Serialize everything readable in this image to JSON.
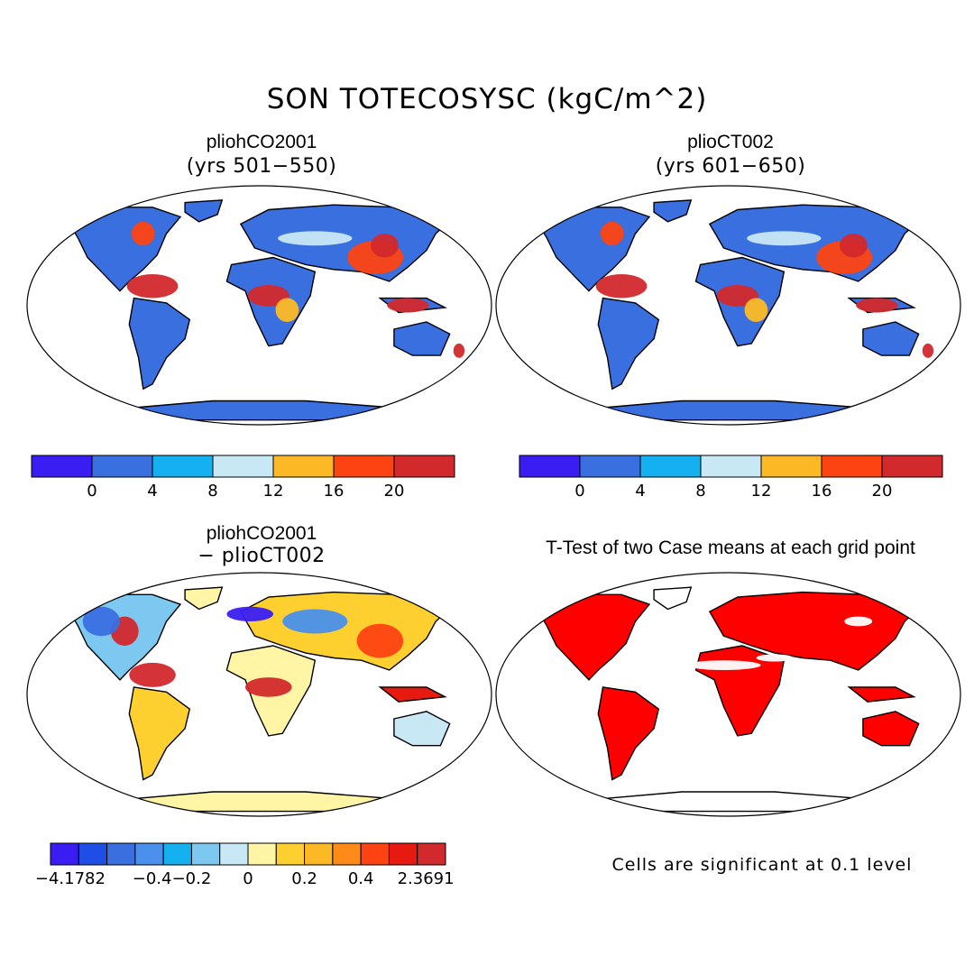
{
  "title": "SON TOTECOSYSC (kgC/m^2)",
  "panels": [
    {
      "id": "case1",
      "title": "pliohCO2001",
      "subtitle": "(yrs 501−550)"
    },
    {
      "id": "case2",
      "title": "plioCT002",
      "subtitle": "(yrs 601−650)"
    },
    {
      "id": "diff",
      "title": "pliohCO2001",
      "subtitle": "− plioCT002"
    },
    {
      "id": "ttest",
      "title": "T-Test of two Case means at each grid point",
      "subtitle": ""
    }
  ],
  "colorbar_main": {
    "colors": [
      "#3a1df2",
      "#3a6fe0",
      "#14b0f0",
      "#c8e8f6",
      "#fdb925",
      "#fe4312",
      "#d2292c"
    ],
    "labels": [
      "0",
      "4",
      "8",
      "12",
      "16",
      "20"
    ]
  },
  "colorbar_diff": {
    "colors": [
      "#3a1df2",
      "#1f4ee6",
      "#3a6fe0",
      "#4a90ec",
      "#14b0f0",
      "#7cc8f0",
      "#c8e8f6",
      "#fff5a4",
      "#fdd030",
      "#fdb925",
      "#fe8a18",
      "#fe4312",
      "#e61a10",
      "#d2292c"
    ],
    "labels": [
      "−4.1782",
      "−0.4",
      "−0.2",
      "0",
      "0.2",
      "0.4",
      "2.3691"
    ]
  },
  "significance_note": "Cells are significant at 0.1 level",
  "map_colors": {
    "ocean": "#ffffff",
    "coast": "#000000",
    "low": "#3a6fe0",
    "mid": "#14b0f0",
    "pale": "#c8e8f6",
    "warm": "#fdb925",
    "hot": "#fe4312",
    "max": "#d2292c",
    "diff_neutral": "#fff5a4",
    "significant": "#ff0000"
  }
}
